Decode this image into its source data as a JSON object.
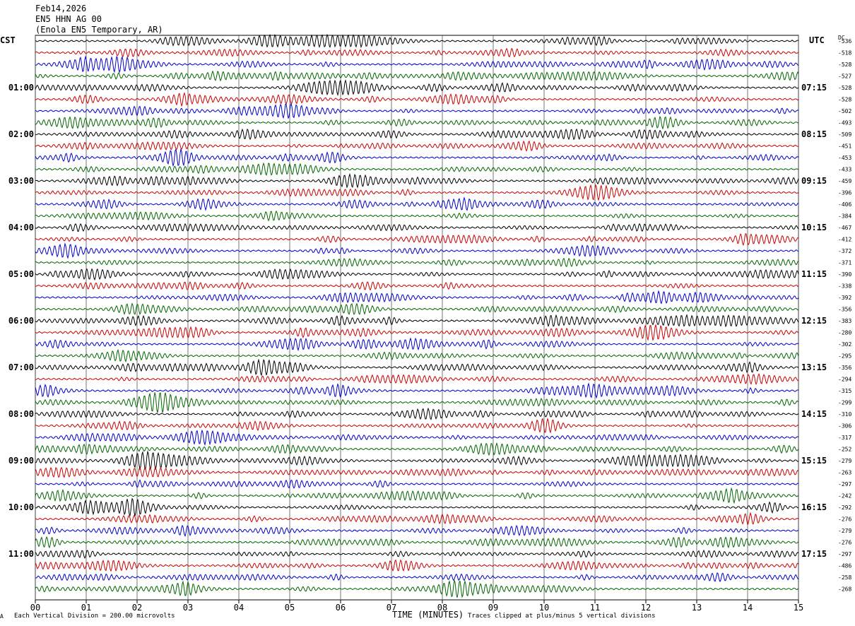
{
  "header": {
    "date": "Feb14,2026",
    "station": "EN5 HHN AG 00",
    "location": "(Enola EN5 Temporary, AR)"
  },
  "left_tz": "CST",
  "right_tz": "UTC",
  "dc_header": "DC",
  "footer": {
    "scale_note": "Each Vertical Division = 200.00 microvolts",
    "xlabel": "TIME (MINUTES)",
    "clip_note": "Traces clipped at plus/minus 5 vertical divisions",
    "corner_mark": "A"
  },
  "colors": {
    "trace_cycle": [
      "#000000",
      "#cc0000",
      "#0000cc",
      "#006600"
    ],
    "grid": "#000000"
  },
  "chart_data": {
    "type": "line",
    "title": "",
    "xlabel": "TIME (MINUTES)",
    "x_ticks": [
      "00",
      "01",
      "02",
      "03",
      "04",
      "05",
      "06",
      "07",
      "08",
      "09",
      "10",
      "11",
      "12",
      "13",
      "14",
      "15"
    ],
    "xlim": [
      0,
      15
    ],
    "trace_count": 48,
    "left_time_labels": [
      "01:00",
      "02:00",
      "03:00",
      "04:00",
      "05:00",
      "06:00",
      "07:00",
      "08:00",
      "09:00",
      "10:00",
      "11:00"
    ],
    "right_time_labels": [
      "07:15",
      "08:15",
      "09:15",
      "10:15",
      "11:15",
      "12:15",
      "13:15",
      "14:15",
      "15:15",
      "16:15",
      "17:15"
    ],
    "dc_offsets": [
      "-536",
      "-518",
      "-528",
      "-527",
      "-528",
      "-528",
      "-502",
      "-493",
      "-509",
      "-451",
      "-453",
      "-433",
      "-459",
      "-396",
      "-406",
      "-384",
      "-467",
      "-412",
      "-372",
      "-371",
      "-390",
      "-338",
      "-392",
      "-356",
      "-383",
      "-280",
      "-302",
      "-295",
      "-356",
      "-294",
      "-315",
      "-299",
      "-310",
      "-306",
      "-317",
      "-252",
      "-279",
      "-263",
      "-297",
      "-242",
      "-292",
      "-276",
      "-279",
      "-276",
      "-297",
      "-486",
      "-258",
      "-268"
    ]
  }
}
